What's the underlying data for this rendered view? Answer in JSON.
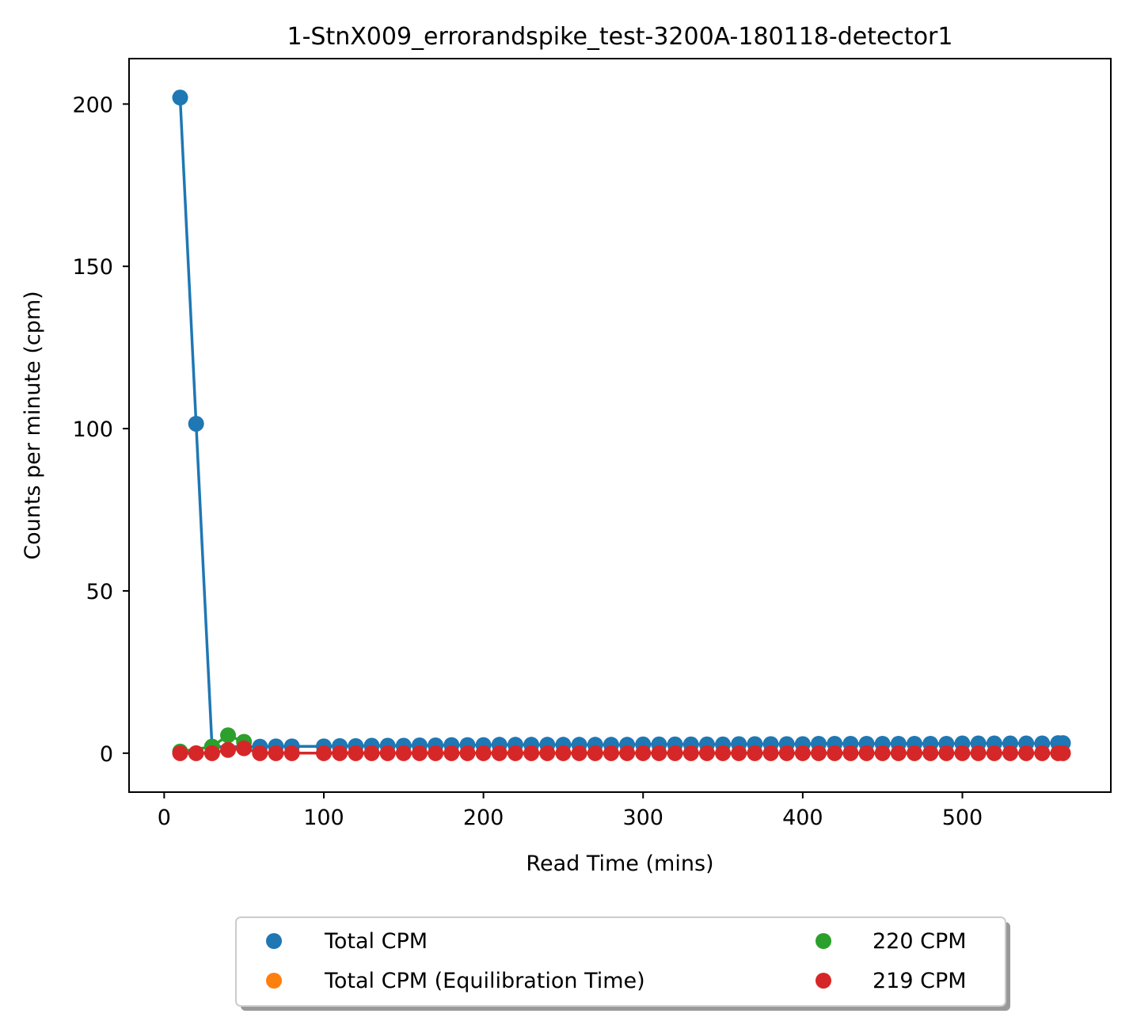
{
  "chart_data": {
    "type": "scatter",
    "title": "1-StnX009_errorandspike_test-3200A-180118-detector1",
    "xlabel": "Read Time (mins)",
    "ylabel": "Counts per minute (cpm)",
    "xlim": [
      -22,
      593
    ],
    "ylim": [
      -12,
      214
    ],
    "xticks": [
      0,
      100,
      200,
      300,
      400,
      500
    ],
    "yticks": [
      0,
      50,
      100,
      150,
      200
    ],
    "xtick_labels": [
      "0",
      "100",
      "200",
      "300",
      "400",
      "500"
    ],
    "ytick_labels": [
      "0",
      "50",
      "100",
      "150",
      "200"
    ],
    "grid": false,
    "legend": {
      "placement": "bottom-center, below axes, two columns, shadow",
      "entries": [
        "Total CPM",
        "Total CPM (Equilibration Time)",
        "220 CPM",
        "219 CPM"
      ]
    },
    "series": [
      {
        "name": "Total CPM",
        "color": "#1f77b4",
        "x": [
          10,
          20,
          30,
          60,
          70,
          80,
          100,
          110,
          120,
          130,
          140,
          150,
          160,
          170,
          180,
          190,
          200,
          210,
          220,
          230,
          240,
          250,
          260,
          270,
          280,
          290,
          300,
          310,
          320,
          330,
          340,
          350,
          360,
          370,
          380,
          390,
          400,
          410,
          420,
          430,
          440,
          450,
          460,
          470,
          480,
          490,
          500,
          510,
          520,
          530,
          540,
          550,
          560,
          563
        ],
        "y": [
          202,
          101.5,
          2.0,
          2.0,
          2.1,
          2.1,
          2.1,
          2.2,
          2.2,
          2.3,
          2.3,
          2.3,
          2.4,
          2.4,
          2.5,
          2.5,
          2.5,
          2.6,
          2.6,
          2.6,
          2.6,
          2.6,
          2.6,
          2.6,
          2.6,
          2.6,
          2.7,
          2.7,
          2.7,
          2.7,
          2.7,
          2.7,
          2.8,
          2.8,
          2.8,
          2.8,
          2.8,
          2.9,
          2.9,
          2.9,
          2.9,
          2.9,
          2.9,
          2.9,
          2.9,
          2.9,
          3.0,
          3.0,
          3.0,
          3.0,
          3.0,
          3.0,
          3.1,
          3.1
        ]
      },
      {
        "name": "Total CPM (Equilibration Time)",
        "color": "#ff7f0e",
        "x": [],
        "y": []
      },
      {
        "name": "220 CPM",
        "color": "#2ca02c",
        "x": [
          10,
          30,
          40,
          50
        ],
        "y": [
          0.5,
          2.0,
          5.5,
          3.5
        ]
      },
      {
        "name": "219 CPM",
        "color": "#d62728",
        "x": [
          10,
          20,
          30,
          40,
          50,
          60,
          70,
          80,
          100,
          110,
          120,
          130,
          140,
          150,
          160,
          170,
          180,
          190,
          200,
          210,
          220,
          230,
          240,
          250,
          260,
          270,
          280,
          290,
          300,
          310,
          320,
          330,
          340,
          350,
          360,
          370,
          380,
          390,
          400,
          410,
          420,
          430,
          440,
          450,
          460,
          470,
          480,
          490,
          500,
          510,
          520,
          530,
          540,
          550,
          560,
          563
        ],
        "y": [
          0,
          0,
          0,
          1.0,
          1.5,
          0,
          0,
          0,
          0,
          0,
          0,
          0,
          0,
          0,
          0,
          0,
          0,
          0,
          0,
          0,
          0,
          0,
          0,
          0,
          0,
          0,
          0,
          0,
          0,
          0,
          0,
          0,
          0,
          0,
          0,
          0,
          0,
          0,
          0,
          0,
          0,
          0,
          0,
          0,
          0,
          0,
          0,
          0,
          0,
          0,
          0,
          0,
          0,
          0,
          0,
          0
        ]
      }
    ]
  }
}
